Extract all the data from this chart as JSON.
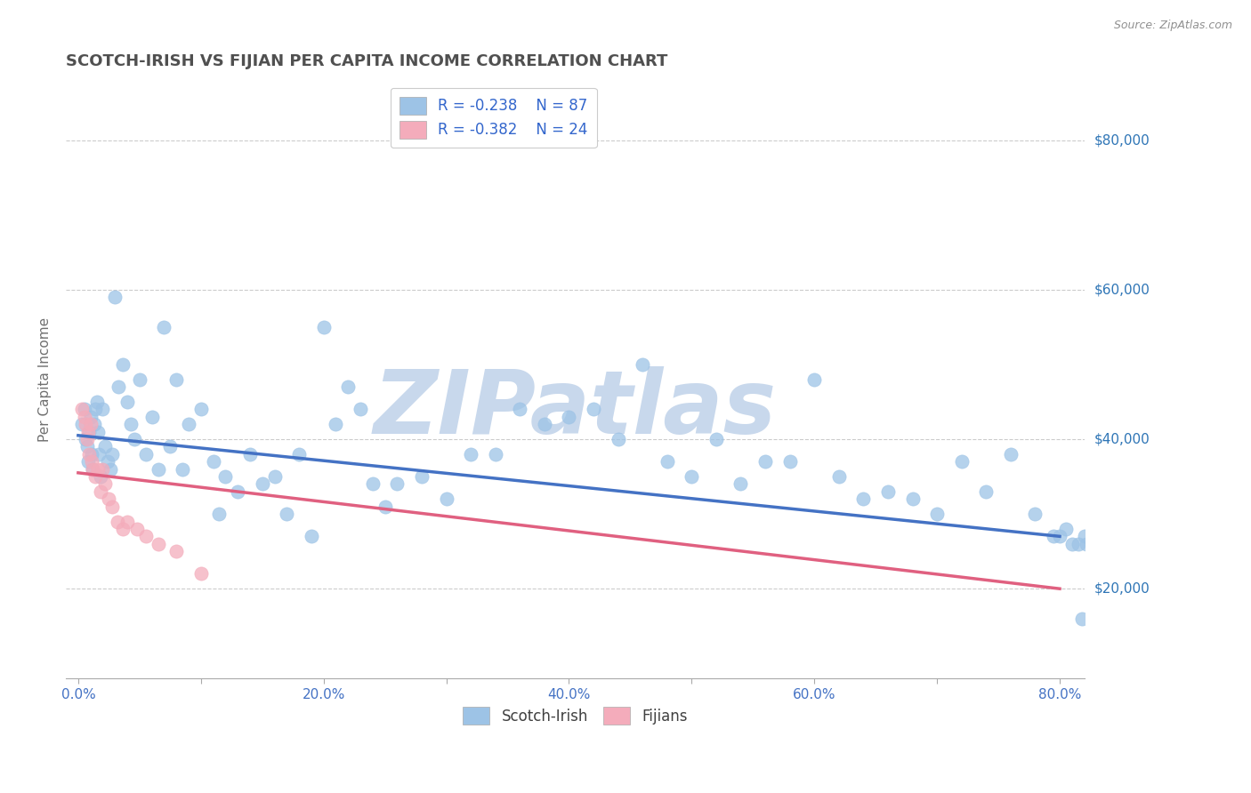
{
  "title": "SCOTCH-IRISH VS FIJIAN PER CAPITA INCOME CORRELATION CHART",
  "source_text": "Source: ZipAtlas.com",
  "ylabel": "Per Capita Income",
  "xlim": [
    -0.01,
    0.82
  ],
  "ylim": [
    8000,
    88000
  ],
  "xtick_vals": [
    0.0,
    0.1,
    0.2,
    0.3,
    0.4,
    0.5,
    0.6,
    0.7,
    0.8
  ],
  "xtick_labels": [
    "0.0%",
    "",
    "20.0%",
    "",
    "40.0%",
    "",
    "60.0%",
    "",
    "80.0%"
  ],
  "ytick_vals": [
    20000,
    40000,
    60000,
    80000
  ],
  "ytick_right_labels": [
    "$20,000",
    "$40,000",
    "$60,000",
    "$80,000"
  ],
  "blue_scatter_color": "#9DC3E6",
  "pink_scatter_color": "#F4ACBB",
  "blue_line_color": "#4472C4",
  "pink_line_color": "#E06080",
  "right_label_color": "#2E75B6",
  "legend_line1_black": "R = ",
  "legend_line2_black": "R = ",
  "legend_R1": "-0.238",
  "legend_N1": "87",
  "legend_R2": "-0.382",
  "legend_N2": "24",
  "legend_label1": "Scotch-Irish",
  "legend_label2": "Fijians",
  "watermark": "ZIPatlas",
  "watermark_color": "#C8D8EC",
  "title_color": "#505050",
  "axis_label_color": "#707070",
  "grid_color": "#CCCCCC",
  "background_color": "#FFFFFF",
  "blue_trend_x0": 0.0,
  "blue_trend_y0": 40500,
  "blue_trend_x1": 0.8,
  "blue_trend_y1": 27000,
  "pink_trend_x0": 0.0,
  "pink_trend_y0": 35500,
  "pink_trend_x1": 0.8,
  "pink_trend_y1": 20000,
  "blue_x": [
    0.003,
    0.005,
    0.006,
    0.007,
    0.008,
    0.009,
    0.01,
    0.011,
    0.012,
    0.013,
    0.014,
    0.015,
    0.016,
    0.017,
    0.018,
    0.02,
    0.022,
    0.024,
    0.026,
    0.028,
    0.03,
    0.033,
    0.036,
    0.04,
    0.043,
    0.046,
    0.05,
    0.055,
    0.06,
    0.065,
    0.07,
    0.075,
    0.08,
    0.085,
    0.09,
    0.1,
    0.11,
    0.115,
    0.12,
    0.13,
    0.14,
    0.15,
    0.16,
    0.17,
    0.18,
    0.19,
    0.2,
    0.21,
    0.22,
    0.23,
    0.24,
    0.25,
    0.26,
    0.28,
    0.3,
    0.32,
    0.34,
    0.36,
    0.38,
    0.4,
    0.42,
    0.44,
    0.46,
    0.48,
    0.5,
    0.52,
    0.54,
    0.56,
    0.58,
    0.6,
    0.62,
    0.64,
    0.66,
    0.68,
    0.7,
    0.72,
    0.74,
    0.76,
    0.78,
    0.795,
    0.8,
    0.805,
    0.81,
    0.815,
    0.818,
    0.82,
    0.822
  ],
  "blue_y": [
    42000,
    44000,
    40000,
    39000,
    37000,
    41000,
    43000,
    38000,
    36000,
    42000,
    44000,
    45000,
    41000,
    38000,
    35000,
    44000,
    39000,
    37000,
    36000,
    38000,
    59000,
    47000,
    50000,
    45000,
    42000,
    40000,
    48000,
    38000,
    43000,
    36000,
    55000,
    39000,
    48000,
    36000,
    42000,
    44000,
    37000,
    30000,
    35000,
    33000,
    38000,
    34000,
    35000,
    30000,
    38000,
    27000,
    55000,
    42000,
    47000,
    44000,
    34000,
    31000,
    34000,
    35000,
    32000,
    38000,
    38000,
    44000,
    42000,
    43000,
    44000,
    40000,
    50000,
    37000,
    35000,
    40000,
    34000,
    37000,
    37000,
    48000,
    35000,
    32000,
    33000,
    32000,
    30000,
    37000,
    33000,
    38000,
    30000,
    27000,
    27000,
    28000,
    26000,
    26000,
    16000,
    27000,
    26000
  ],
  "pink_x": [
    0.003,
    0.005,
    0.006,
    0.007,
    0.008,
    0.009,
    0.01,
    0.011,
    0.012,
    0.014,
    0.016,
    0.018,
    0.02,
    0.022,
    0.025,
    0.028,
    0.032,
    0.036,
    0.04,
    0.048,
    0.055,
    0.065,
    0.08,
    0.1
  ],
  "pink_y": [
    44000,
    43000,
    42000,
    40000,
    41000,
    38000,
    42000,
    37000,
    36000,
    35000,
    36000,
    33000,
    36000,
    34000,
    32000,
    31000,
    29000,
    28000,
    29000,
    28000,
    27000,
    26000,
    25000,
    22000
  ]
}
